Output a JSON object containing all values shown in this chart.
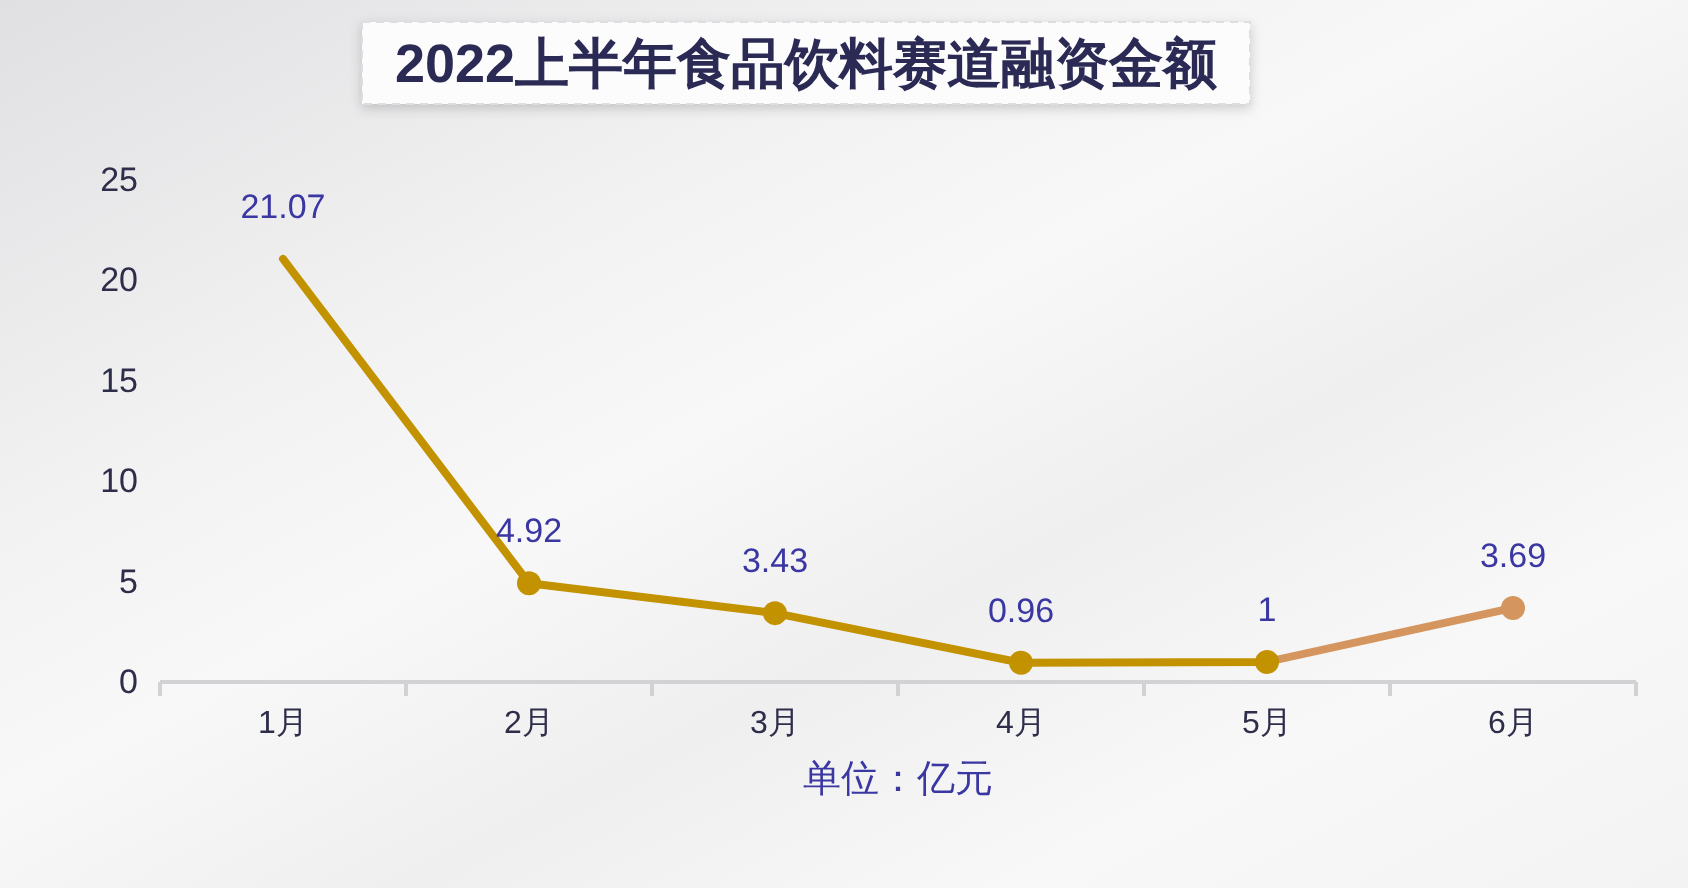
{
  "chart_data": {
    "type": "line",
    "title": "2022上半年食品饮料赛道融资金额",
    "xlabel": "单位：亿元",
    "categories": [
      "1月",
      "2月",
      "3月",
      "4月",
      "5月",
      "6月"
    ],
    "values": [
      21.07,
      4.92,
      3.43,
      0.96,
      1,
      3.69
    ],
    "colors": [
      null,
      "#c39200",
      "#c39200",
      "#c39200",
      "#c39200",
      "#d4965e"
    ],
    "marker": "circle",
    "line_style": "solid",
    "data_labels": true,
    "ylim": [
      0,
      25
    ],
    "yticks": [
      0,
      5,
      10,
      15,
      20,
      25
    ]
  }
}
